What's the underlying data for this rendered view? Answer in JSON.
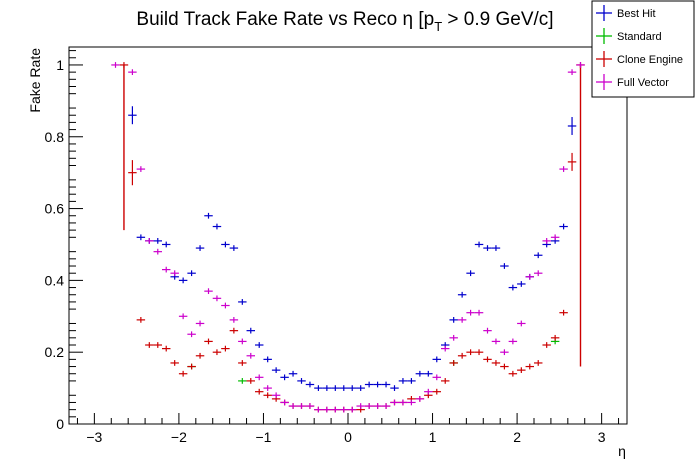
{
  "chart_data": {
    "type": "scatter",
    "title": "Build Track Fake Rate vs Reco η [p",
    "title_sub": "T",
    "title_tail": " > 0.9 GeV/c]",
    "xlabel": "η",
    "ylabel": "Fake Rate",
    "xlim": [
      -3.3,
      3.3
    ],
    "ylim": [
      0,
      1.05
    ],
    "bin_width": 0.1,
    "x_ticks": [
      -3,
      -2,
      -1,
      0,
      1,
      2,
      3
    ],
    "x_tick_labels": [
      "−3",
      "−2",
      "−1",
      "0",
      "1",
      "2",
      "3"
    ],
    "y_ticks": [
      0,
      0.2,
      0.4,
      0.6,
      0.8,
      1
    ],
    "y_tick_labels": [
      "0",
      "0.2",
      "0.4",
      "0.6",
      "0.8",
      "1"
    ],
    "grid": false,
    "legend_position": "top-right",
    "series": [
      {
        "name": "Best Hit",
        "color": "#0000cc",
        "points": [
          [
            -2.55,
            0.86,
            0.025
          ],
          [
            -2.45,
            0.52,
            0
          ],
          [
            -2.35,
            0.51,
            0
          ],
          [
            -2.25,
            0.51,
            0
          ],
          [
            -2.15,
            0.5,
            0
          ],
          [
            -2.05,
            0.41,
            0
          ],
          [
            -1.95,
            0.4,
            0
          ],
          [
            -1.85,
            0.42,
            0
          ],
          [
            -1.75,
            0.49,
            0
          ],
          [
            -1.65,
            0.58,
            0
          ],
          [
            -1.55,
            0.55,
            0
          ],
          [
            -1.45,
            0.5,
            0
          ],
          [
            -1.35,
            0.49,
            0
          ],
          [
            -1.25,
            0.34,
            0
          ],
          [
            -1.15,
            0.26,
            0
          ],
          [
            -1.05,
            0.22,
            0
          ],
          [
            -0.95,
            0.18,
            0
          ],
          [
            -0.85,
            0.15,
            0
          ],
          [
            -0.75,
            0.13,
            0
          ],
          [
            -0.65,
            0.14,
            0
          ],
          [
            -0.55,
            0.12,
            0
          ],
          [
            -0.45,
            0.11,
            0
          ],
          [
            -0.35,
            0.1,
            0
          ],
          [
            -0.25,
            0.1,
            0
          ],
          [
            -0.15,
            0.1,
            0
          ],
          [
            -0.05,
            0.1,
            0
          ],
          [
            0.05,
            0.1,
            0
          ],
          [
            0.15,
            0.1,
            0
          ],
          [
            0.25,
            0.11,
            0
          ],
          [
            0.35,
            0.11,
            0
          ],
          [
            0.45,
            0.11,
            0
          ],
          [
            0.55,
            0.1,
            0
          ],
          [
            0.65,
            0.12,
            0
          ],
          [
            0.75,
            0.12,
            0
          ],
          [
            0.85,
            0.14,
            0
          ],
          [
            0.95,
            0.14,
            0
          ],
          [
            1.05,
            0.18,
            0
          ],
          [
            1.15,
            0.22,
            0
          ],
          [
            1.25,
            0.29,
            0
          ],
          [
            1.35,
            0.36,
            0
          ],
          [
            1.45,
            0.42,
            0
          ],
          [
            1.55,
            0.5,
            0
          ],
          [
            1.65,
            0.49,
            0
          ],
          [
            1.75,
            0.49,
            0
          ],
          [
            1.85,
            0.44,
            0
          ],
          [
            1.95,
            0.38,
            0
          ],
          [
            2.05,
            0.39,
            0
          ],
          [
            2.15,
            0.41,
            0
          ],
          [
            2.25,
            0.47,
            0
          ],
          [
            2.35,
            0.5,
            0
          ],
          [
            2.45,
            0.51,
            0
          ],
          [
            2.55,
            0.55,
            0
          ],
          [
            2.65,
            0.83,
            0.025
          ]
        ]
      },
      {
        "name": "Standard",
        "color": "#00bb00",
        "points": [
          [
            -1.85,
            0.16,
            0
          ],
          [
            -1.25,
            0.12,
            0
          ],
          [
            1.25,
            0.17,
            0
          ],
          [
            2.45,
            0.23,
            0
          ]
        ]
      },
      {
        "name": "Clone Engine",
        "color": "#cc0000",
        "points": [
          [
            -2.65,
            1.0,
            0.0
          ],
          [
            -2.55,
            0.7,
            0.035
          ],
          [
            -2.45,
            0.29,
            0
          ],
          [
            -2.35,
            0.22,
            0
          ],
          [
            -2.25,
            0.22,
            0
          ],
          [
            -2.15,
            0.21,
            0
          ],
          [
            -2.05,
            0.17,
            0
          ],
          [
            -1.95,
            0.14,
            0
          ],
          [
            -1.85,
            0.16,
            0
          ],
          [
            -1.75,
            0.19,
            0
          ],
          [
            -1.65,
            0.23,
            0
          ],
          [
            -1.55,
            0.2,
            0
          ],
          [
            -1.45,
            0.21,
            0
          ],
          [
            -1.35,
            0.26,
            0
          ],
          [
            -1.25,
            0.17,
            0
          ],
          [
            -1.15,
            0.12,
            0
          ],
          [
            -1.05,
            0.09,
            0
          ],
          [
            -0.95,
            0.08,
            0
          ],
          [
            -0.85,
            0.07,
            0
          ],
          [
            -0.75,
            0.06,
            0
          ],
          [
            -0.65,
            0.05,
            0
          ],
          [
            -0.55,
            0.05,
            0
          ],
          [
            -0.45,
            0.05,
            0
          ],
          [
            -0.35,
            0.04,
            0
          ],
          [
            -0.25,
            0.04,
            0
          ],
          [
            -0.15,
            0.04,
            0
          ],
          [
            -0.05,
            0.04,
            0
          ],
          [
            0.05,
            0.04,
            0
          ],
          [
            0.15,
            0.04,
            0
          ],
          [
            0.25,
            0.05,
            0
          ],
          [
            0.35,
            0.05,
            0
          ],
          [
            0.45,
            0.05,
            0
          ],
          [
            0.55,
            0.06,
            0
          ],
          [
            0.65,
            0.06,
            0
          ],
          [
            0.75,
            0.07,
            0
          ],
          [
            0.85,
            0.07,
            0
          ],
          [
            0.95,
            0.08,
            0
          ],
          [
            1.05,
            0.09,
            0
          ],
          [
            1.15,
            0.12,
            0
          ],
          [
            1.25,
            0.17,
            0
          ],
          [
            1.35,
            0.19,
            0
          ],
          [
            1.45,
            0.2,
            0
          ],
          [
            1.55,
            0.2,
            0
          ],
          [
            1.65,
            0.18,
            0
          ],
          [
            1.75,
            0.17,
            0
          ],
          [
            1.85,
            0.16,
            0
          ],
          [
            1.95,
            0.14,
            0
          ],
          [
            2.05,
            0.15,
            0
          ],
          [
            2.15,
            0.16,
            0
          ],
          [
            2.25,
            0.17,
            0
          ],
          [
            2.35,
            0.22,
            0
          ],
          [
            2.45,
            0.24,
            0
          ],
          [
            2.55,
            0.31,
            0
          ],
          [
            2.65,
            0.73,
            0.025
          ],
          [
            2.75,
            1.0,
            0.0
          ]
        ],
        "error_bars": [
          {
            "x": -2.65,
            "low": 0.54,
            "high": 1.0
          },
          {
            "x": 2.75,
            "low": 0.16,
            "high": 1.0
          }
        ]
      },
      {
        "name": "Full Vector",
        "color": "#cc00cc",
        "points": [
          [
            -2.75,
            1.0,
            0
          ],
          [
            -2.55,
            0.98,
            0
          ],
          [
            -2.45,
            0.71,
            0
          ],
          [
            -2.35,
            0.51,
            0
          ],
          [
            -2.25,
            0.48,
            0
          ],
          [
            -2.15,
            0.43,
            0
          ],
          [
            -2.05,
            0.42,
            0
          ],
          [
            -1.95,
            0.3,
            0
          ],
          [
            -1.85,
            0.25,
            0
          ],
          [
            -1.75,
            0.28,
            0
          ],
          [
            -1.65,
            0.37,
            0
          ],
          [
            -1.55,
            0.35,
            0
          ],
          [
            -1.45,
            0.33,
            0
          ],
          [
            -1.35,
            0.29,
            0
          ],
          [
            -1.25,
            0.23,
            0
          ],
          [
            -1.15,
            0.19,
            0
          ],
          [
            -1.05,
            0.13,
            0
          ],
          [
            -0.95,
            0.1,
            0
          ],
          [
            -0.85,
            0.08,
            0
          ],
          [
            -0.75,
            0.06,
            0
          ],
          [
            -0.65,
            0.05,
            0
          ],
          [
            -0.55,
            0.05,
            0
          ],
          [
            -0.45,
            0.05,
            0
          ],
          [
            -0.35,
            0.04,
            0
          ],
          [
            -0.25,
            0.04,
            0
          ],
          [
            -0.15,
            0.04,
            0
          ],
          [
            -0.05,
            0.04,
            0
          ],
          [
            0.05,
            0.04,
            0
          ],
          [
            0.15,
            0.05,
            0
          ],
          [
            0.25,
            0.05,
            0
          ],
          [
            0.35,
            0.05,
            0
          ],
          [
            0.45,
            0.05,
            0
          ],
          [
            0.55,
            0.06,
            0
          ],
          [
            0.65,
            0.06,
            0
          ],
          [
            0.75,
            0.06,
            0
          ],
          [
            0.85,
            0.07,
            0
          ],
          [
            0.95,
            0.09,
            0
          ],
          [
            1.05,
            0.13,
            0
          ],
          [
            1.15,
            0.21,
            0
          ],
          [
            1.25,
            0.24,
            0
          ],
          [
            1.35,
            0.29,
            0
          ],
          [
            1.45,
            0.31,
            0
          ],
          [
            1.55,
            0.31,
            0
          ],
          [
            1.65,
            0.26,
            0
          ],
          [
            1.75,
            0.23,
            0
          ],
          [
            1.85,
            0.2,
            0
          ],
          [
            1.95,
            0.23,
            0
          ],
          [
            2.05,
            0.28,
            0
          ],
          [
            2.15,
            0.41,
            0
          ],
          [
            2.25,
            0.42,
            0
          ],
          [
            2.35,
            0.51,
            0
          ],
          [
            2.45,
            0.52,
            0
          ],
          [
            2.55,
            0.71,
            0
          ],
          [
            2.65,
            0.98,
            0
          ],
          [
            2.75,
            1.0,
            0
          ]
        ]
      }
    ]
  }
}
